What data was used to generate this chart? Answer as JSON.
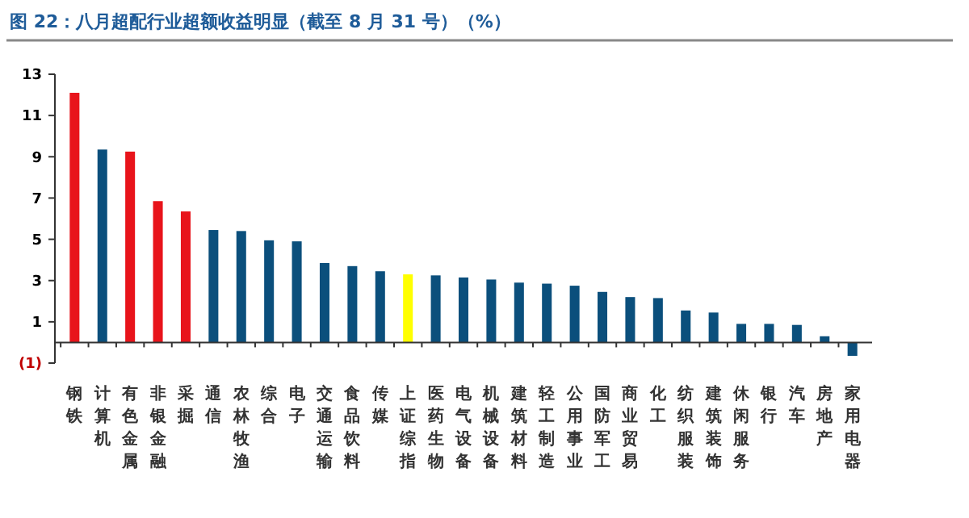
{
  "chart_data": {
    "type": "bar",
    "title": "图 22：八月超配行业超额收益明显（截至 8 月 31 号）（%）",
    "categories": [
      "钢铁",
      "计算机",
      "有色金属",
      "非银金融",
      "采掘",
      "通信",
      "农林牧渔",
      "综合",
      "电子",
      "交通运输",
      "食品饮料",
      "传媒",
      "上证综指",
      "医药生物",
      "电气设备",
      "机械设备",
      "建筑材料",
      "轻工制造",
      "公用事业",
      "国防军工",
      "商业贸易",
      "化工",
      "纺织服装",
      "建筑装饰",
      "休闲服务",
      "银行",
      "汽车",
      "房地产",
      "家用电器"
    ],
    "values": [
      12.1,
      9.35,
      9.25,
      6.85,
      6.35,
      5.45,
      5.4,
      4.95,
      4.9,
      3.85,
      3.7,
      3.45,
      3.3,
      3.25,
      3.15,
      3.05,
      2.9,
      2.85,
      2.75,
      2.45,
      2.2,
      2.15,
      1.55,
      1.45,
      0.9,
      0.9,
      0.85,
      0.3,
      -0.65
    ],
    "colors": [
      "#e8141b",
      "#0b4f7c",
      "#e8141b",
      "#e8141b",
      "#e8141b",
      "#0b4f7c",
      "#0b4f7c",
      "#0b4f7c",
      "#0b4f7c",
      "#0b4f7c",
      "#0b4f7c",
      "#0b4f7c",
      "#ffff00",
      "#0b4f7c",
      "#0b4f7c",
      "#0b4f7c",
      "#0b4f7c",
      "#0b4f7c",
      "#0b4f7c",
      "#0b4f7c",
      "#0b4f7c",
      "#0b4f7c",
      "#0b4f7c",
      "#0b4f7c",
      "#0b4f7c",
      "#0b4f7c",
      "#0b4f7c",
      "#0b4f7c",
      "#0b4f7c"
    ],
    "ylim": [
      -1,
      13
    ],
    "yticks": [
      {
        "value": -1,
        "label": "(1)"
      },
      1,
      3,
      5,
      7,
      9,
      11,
      13
    ],
    "grid": false
  }
}
